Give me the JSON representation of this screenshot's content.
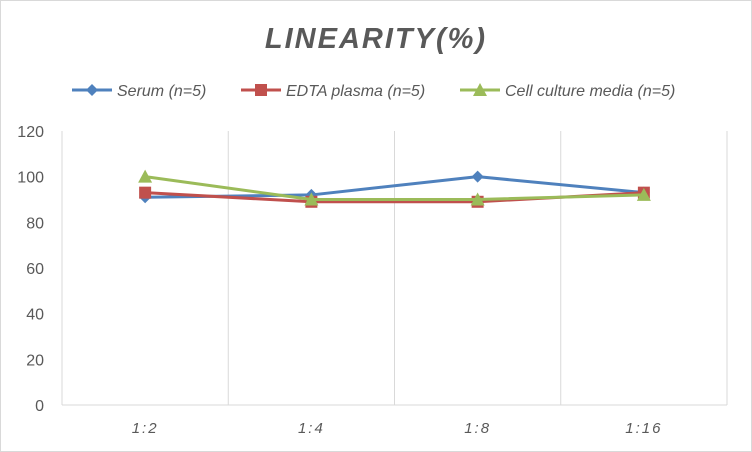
{
  "chart_data": {
    "type": "line",
    "title": "LINEARITY(%)",
    "categories": [
      "1:2",
      "1:4",
      "1:8",
      "1:16"
    ],
    "ylim": [
      0,
      120
    ],
    "yticks": [
      0,
      20,
      40,
      60,
      80,
      100,
      120
    ],
    "grid": "vertical",
    "legend": "top",
    "series": [
      {
        "name": "Serum (n=5)",
        "values": [
          91,
          92,
          100,
          93
        ],
        "color": "#4f81bd",
        "marker": "diamond"
      },
      {
        "name": "EDTA plasma (n=5)",
        "values": [
          93,
          89,
          89,
          93
        ],
        "color": "#c0504d",
        "marker": "square"
      },
      {
        "name": "Cell culture media (n=5)",
        "values": [
          100,
          90,
          90,
          92
        ],
        "color": "#9bbb59",
        "marker": "triangle"
      }
    ]
  }
}
